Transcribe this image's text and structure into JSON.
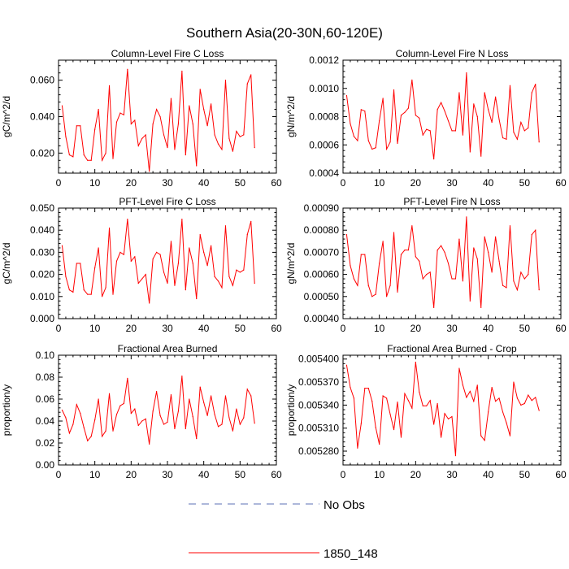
{
  "figure": {
    "title": "Southern Asia(20-30N,60-120E)",
    "legend": [
      {
        "label": "No Obs",
        "color": "#5b6fb5",
        "style": "dashed"
      },
      {
        "label": "1850_148",
        "color": "#ff0000",
        "style": "solid"
      }
    ]
  },
  "chart_data": [
    {
      "type": "line",
      "title": "Column-Level Fire C Loss",
      "xlabel": "",
      "ylabel": "gC/m^2/d",
      "xlim": [
        0,
        60
      ],
      "ylim": [
        0.009,
        0.071
      ],
      "xticks": [
        0,
        10,
        20,
        30,
        40,
        50,
        60
      ],
      "xtick_labels": [
        "0",
        "10",
        "20",
        "30",
        "40",
        "50",
        "60"
      ],
      "yticks": [
        0.02,
        0.04,
        0.06
      ],
      "ytick_labels": [
        "0.020",
        "0.040",
        "0.060"
      ],
      "grid": false,
      "series": [
        {
          "name": "1850_148",
          "color": "#ff0000",
          "x": [
            1,
            2,
            3,
            4,
            5,
            6,
            7,
            8,
            9,
            10,
            11,
            12,
            13,
            14,
            15,
            16,
            17,
            18,
            19,
            20,
            21,
            22,
            23,
            24,
            25,
            26,
            27,
            28,
            29,
            30,
            31,
            32,
            33,
            34,
            35,
            36,
            37,
            38,
            39,
            40,
            41,
            42,
            43,
            44,
            45,
            46,
            47,
            48,
            49,
            50,
            51,
            52,
            53,
            54
          ],
          "y": [
            0.046,
            0.029,
            0.019,
            0.018,
            0.035,
            0.035,
            0.019,
            0.016,
            0.016,
            0.033,
            0.044,
            0.016,
            0.02,
            0.057,
            0.017,
            0.037,
            0.042,
            0.041,
            0.066,
            0.036,
            0.038,
            0.024,
            0.028,
            0.03,
            0.01,
            0.036,
            0.044,
            0.04,
            0.03,
            0.023,
            0.05,
            0.022,
            0.036,
            0.065,
            0.019,
            0.046,
            0.036,
            0.013,
            0.055,
            0.044,
            0.035,
            0.047,
            0.03,
            0.025,
            0.022,
            0.06,
            0.028,
            0.021,
            0.032,
            0.029,
            0.03,
            0.058,
            0.063,
            0.023
          ]
        }
      ]
    },
    {
      "type": "line",
      "title": "Column-Level Fire N Loss",
      "xlabel": "",
      "ylabel": "gN/m^2/d",
      "xlim": [
        0,
        60
      ],
      "ylim": [
        0.0004,
        0.0012
      ],
      "xticks": [
        0,
        10,
        20,
        30,
        40,
        50,
        60
      ],
      "xtick_labels": [
        "0",
        "10",
        "20",
        "30",
        "40",
        "50",
        "60"
      ],
      "yticks": [
        0.0004,
        0.0006,
        0.0008,
        0.001,
        0.0012
      ],
      "ytick_labels": [
        "0.0004",
        "0.0006",
        "0.0008",
        "0.0010",
        "0.0012"
      ],
      "grid": false,
      "series": [
        {
          "name": "1850_148",
          "color": "#ff0000",
          "x": [
            1,
            2,
            3,
            4,
            5,
            6,
            7,
            8,
            9,
            10,
            11,
            12,
            13,
            14,
            15,
            16,
            17,
            18,
            19,
            20,
            21,
            22,
            23,
            24,
            25,
            26,
            27,
            28,
            29,
            30,
            31,
            32,
            33,
            34,
            35,
            36,
            37,
            38,
            39,
            40,
            41,
            42,
            43,
            44,
            45,
            46,
            47,
            48,
            49,
            50,
            51,
            52,
            53,
            54
          ],
          "y": [
            0.00095,
            0.00075,
            0.00066,
            0.00063,
            0.00085,
            0.00084,
            0.00063,
            0.00057,
            0.00058,
            0.00077,
            0.00093,
            0.00057,
            0.00062,
            0.00099,
            0.00061,
            0.00081,
            0.00083,
            0.00086,
            0.00106,
            0.00081,
            0.00079,
            0.00067,
            0.00071,
            0.0007,
            0.0005,
            0.00085,
            0.0009,
            0.00084,
            0.00077,
            0.0007,
            0.0007,
            0.00097,
            0.00067,
            0.00111,
            0.00055,
            0.00089,
            0.0008,
            0.00052,
            0.00097,
            0.00085,
            0.00076,
            0.00094,
            0.00078,
            0.00065,
            0.00064,
            0.00102,
            0.00069,
            0.00064,
            0.00076,
            0.0007,
            0.00072,
            0.00097,
            0.00103,
            0.00062
          ]
        }
      ]
    },
    {
      "type": "line",
      "title": "PFT-Level Fire C Loss",
      "xlabel": "",
      "ylabel": "gC/m^2/d",
      "xlim": [
        0,
        60
      ],
      "ylim": [
        0.0,
        0.05
      ],
      "xticks": [
        0,
        10,
        20,
        30,
        40,
        50,
        60
      ],
      "xtick_labels": [
        "0",
        "10",
        "20",
        "30",
        "40",
        "50",
        "60"
      ],
      "yticks": [
        0.0,
        0.01,
        0.02,
        0.03,
        0.04,
        0.05
      ],
      "ytick_labels": [
        "0.000",
        "0.010",
        "0.020",
        "0.030",
        "0.040",
        "0.050"
      ],
      "grid": false,
      "series": [
        {
          "name": "1850_148",
          "color": "#ff0000",
          "x": [
            1,
            2,
            3,
            4,
            5,
            6,
            7,
            8,
            9,
            10,
            11,
            12,
            13,
            14,
            15,
            16,
            17,
            18,
            19,
            20,
            21,
            22,
            23,
            24,
            25,
            26,
            27,
            28,
            29,
            30,
            31,
            32,
            33,
            34,
            35,
            36,
            37,
            38,
            39,
            40,
            41,
            42,
            43,
            44,
            45,
            46,
            47,
            48,
            49,
            50,
            51,
            52,
            53,
            54
          ],
          "y": [
            0.033,
            0.019,
            0.013,
            0.012,
            0.025,
            0.025,
            0.013,
            0.011,
            0.011,
            0.023,
            0.032,
            0.01,
            0.014,
            0.041,
            0.011,
            0.026,
            0.03,
            0.029,
            0.045,
            0.026,
            0.028,
            0.016,
            0.018,
            0.02,
            0.007,
            0.027,
            0.03,
            0.029,
            0.021,
            0.016,
            0.035,
            0.015,
            0.025,
            0.045,
            0.013,
            0.032,
            0.025,
            0.009,
            0.038,
            0.03,
            0.024,
            0.033,
            0.019,
            0.017,
            0.014,
            0.042,
            0.019,
            0.015,
            0.022,
            0.021,
            0.022,
            0.038,
            0.044,
            0.016
          ]
        }
      ]
    },
    {
      "type": "line",
      "title": "PFT-Level Fire N Loss",
      "xlabel": "",
      "ylabel": "gN/m^2/d",
      "xlim": [
        0,
        60
      ],
      "ylim": [
        0.0004,
        0.0009
      ],
      "xticks": [
        0,
        10,
        20,
        30,
        40,
        50,
        60
      ],
      "xtick_labels": [
        "0",
        "10",
        "20",
        "30",
        "40",
        "50",
        "60"
      ],
      "yticks": [
        0.0004,
        0.0005,
        0.0006,
        0.0007,
        0.0008,
        0.0009
      ],
      "ytick_labels": [
        "0.00040",
        "0.00050",
        "0.00060",
        "0.00070",
        "0.00080",
        "0.00090"
      ],
      "grid": false,
      "series": [
        {
          "name": "1850_148",
          "color": "#ff0000",
          "x": [
            1,
            2,
            3,
            4,
            5,
            6,
            7,
            8,
            9,
            10,
            11,
            12,
            13,
            14,
            15,
            16,
            17,
            18,
            19,
            20,
            21,
            22,
            23,
            24,
            25,
            26,
            27,
            28,
            29,
            30,
            31,
            32,
            33,
            34,
            35,
            36,
            37,
            38,
            39,
            40,
            41,
            42,
            43,
            44,
            45,
            46,
            47,
            48,
            49,
            50,
            51,
            52,
            53,
            54
          ],
          "y": [
            0.00078,
            0.00064,
            0.00058,
            0.00055,
            0.00069,
            0.00069,
            0.00055,
            0.0005,
            0.00051,
            0.00065,
            0.00075,
            0.0005,
            0.00055,
            0.00079,
            0.00052,
            0.00069,
            0.00071,
            0.00071,
            0.00082,
            0.00068,
            0.00066,
            0.00058,
            0.0006,
            0.00061,
            0.00045,
            0.00071,
            0.00073,
            0.0007,
            0.00065,
            0.00058,
            0.00058,
            0.00076,
            0.00057,
            0.00086,
            0.00048,
            0.00072,
            0.00067,
            0.00045,
            0.00077,
            0.0007,
            0.00061,
            0.00077,
            0.00066,
            0.00055,
            0.00054,
            0.00082,
            0.00057,
            0.00053,
            0.00061,
            0.00058,
            0.0006,
            0.00078,
            0.0008,
            0.00053
          ]
        }
      ]
    },
    {
      "type": "line",
      "title": "Fractional Area Burned",
      "xlabel": "",
      "ylabel": "proportion/y",
      "xlim": [
        0,
        60
      ],
      "ylim": [
        0.0,
        0.1
      ],
      "xticks": [
        0,
        10,
        20,
        30,
        40,
        50,
        60
      ],
      "xtick_labels": [
        "0",
        "10",
        "20",
        "30",
        "40",
        "50",
        "60"
      ],
      "yticks": [
        0.0,
        0.02,
        0.04,
        0.06,
        0.08,
        0.1
      ],
      "ytick_labels": [
        "0.00",
        "0.02",
        "0.04",
        "0.06",
        "0.08",
        "0.10"
      ],
      "grid": false,
      "series": [
        {
          "name": "1850_148",
          "color": "#ff0000",
          "x": [
            1,
            2,
            3,
            4,
            5,
            6,
            7,
            8,
            9,
            10,
            11,
            12,
            13,
            14,
            15,
            16,
            17,
            18,
            19,
            20,
            21,
            22,
            23,
            24,
            25,
            26,
            27,
            28,
            29,
            30,
            31,
            32,
            33,
            34,
            35,
            36,
            37,
            38,
            39,
            40,
            41,
            42,
            43,
            44,
            45,
            46,
            47,
            48,
            49,
            50,
            51,
            52,
            53,
            54
          ],
          "y": [
            0.05,
            0.043,
            0.029,
            0.037,
            0.055,
            0.047,
            0.034,
            0.022,
            0.026,
            0.041,
            0.06,
            0.026,
            0.031,
            0.065,
            0.031,
            0.046,
            0.054,
            0.056,
            0.079,
            0.047,
            0.051,
            0.036,
            0.04,
            0.042,
            0.019,
            0.049,
            0.067,
            0.045,
            0.037,
            0.039,
            0.064,
            0.033,
            0.049,
            0.081,
            0.033,
            0.06,
            0.044,
            0.024,
            0.071,
            0.057,
            0.045,
            0.063,
            0.046,
            0.035,
            0.037,
            0.063,
            0.043,
            0.031,
            0.051,
            0.037,
            0.043,
            0.069,
            0.063,
            0.038
          ]
        }
      ]
    },
    {
      "type": "line",
      "title": "Fractional Area Burned - Crop",
      "xlabel": "",
      "ylabel": "proportion/y",
      "xlim": [
        0,
        60
      ],
      "ylim": [
        0.005262,
        0.005405
      ],
      "xticks": [
        0,
        10,
        20,
        30,
        40,
        50,
        60
      ],
      "xtick_labels": [
        "0",
        "10",
        "20",
        "30",
        "40",
        "50",
        "60"
      ],
      "yticks": [
        0.00528,
        0.00531,
        0.00534,
        0.00537,
        0.0054
      ],
      "ytick_labels": [
        "0.005280",
        "0.005310",
        "0.005340",
        "0.005370",
        "0.005400"
      ],
      "grid": false,
      "series": [
        {
          "name": "1850_148",
          "color": "#ff0000",
          "x": [
            1,
            2,
            3,
            4,
            5,
            6,
            7,
            8,
            9,
            10,
            11,
            12,
            13,
            14,
            15,
            16,
            17,
            18,
            19,
            20,
            21,
            22,
            23,
            24,
            25,
            26,
            27,
            28,
            29,
            30,
            31,
            32,
            33,
            34,
            35,
            36,
            37,
            38,
            39,
            40,
            41,
            42,
            43,
            44,
            45,
            46,
            47,
            48,
            49,
            50,
            51,
            52,
            53,
            54
          ],
          "y": [
            0.005392,
            0.005363,
            0.005349,
            0.005284,
            0.005316,
            0.005362,
            0.005362,
            0.005345,
            0.005311,
            0.005289,
            0.005352,
            0.005349,
            0.005328,
            0.005308,
            0.005344,
            0.005298,
            0.005355,
            0.005346,
            0.005336,
            0.005396,
            0.005357,
            0.005339,
            0.005339,
            0.005346,
            0.005315,
            0.005342,
            0.005298,
            0.005329,
            0.005322,
            0.005325,
            0.005274,
            0.005388,
            0.005366,
            0.00535,
            0.005358,
            0.005345,
            0.005366,
            0.0053,
            0.005294,
            0.005331,
            0.005363,
            0.005345,
            0.005349,
            0.005331,
            0.005317,
            0.0053,
            0.00537,
            0.005349,
            0.00534,
            0.005342,
            0.005353,
            0.005346,
            0.00535,
            0.005333
          ]
        }
      ]
    }
  ]
}
